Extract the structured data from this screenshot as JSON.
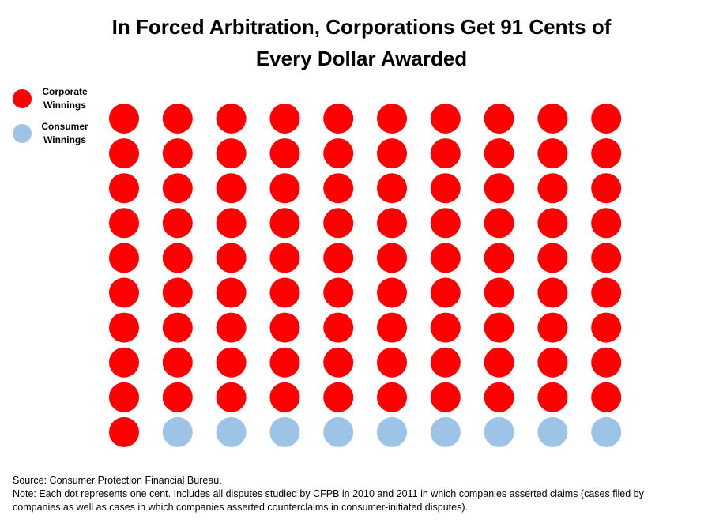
{
  "title_line1": "In Forced Arbitration, Corporations Get 91 Cents of",
  "title_line2": "Every Dollar Awarded",
  "legend": {
    "corporate_line1": "Corporate",
    "corporate_line2": "Winnings",
    "consumer_line1": "Consumer",
    "consumer_line2": "Winnings"
  },
  "colors": {
    "corporate": "#ff0000",
    "consumer": "#9dc3e6"
  },
  "chart_data": {
    "type": "dot-matrix",
    "unit": "one cent per dot",
    "total_dots": 100,
    "rows": 10,
    "columns": 10,
    "series": [
      {
        "name": "Corporate Winnings",
        "value": 91,
        "color": "#ff0000"
      },
      {
        "name": "Consumer Winnings",
        "value": 9,
        "color": "#9dc3e6"
      }
    ],
    "fill_order": "row-major from top-left"
  },
  "footer": {
    "source": "Source: Consumer Protection Financial Bureau.",
    "note_line1": "Note: Each dot represents one cent. Includes all disputes studied by CFPB in 2010 and 2011 in which companies asserted claims (cases filed by",
    "note_line2": "companies as well as cases in which companies asserted counterclaims in consumer-initiated disputes)."
  }
}
